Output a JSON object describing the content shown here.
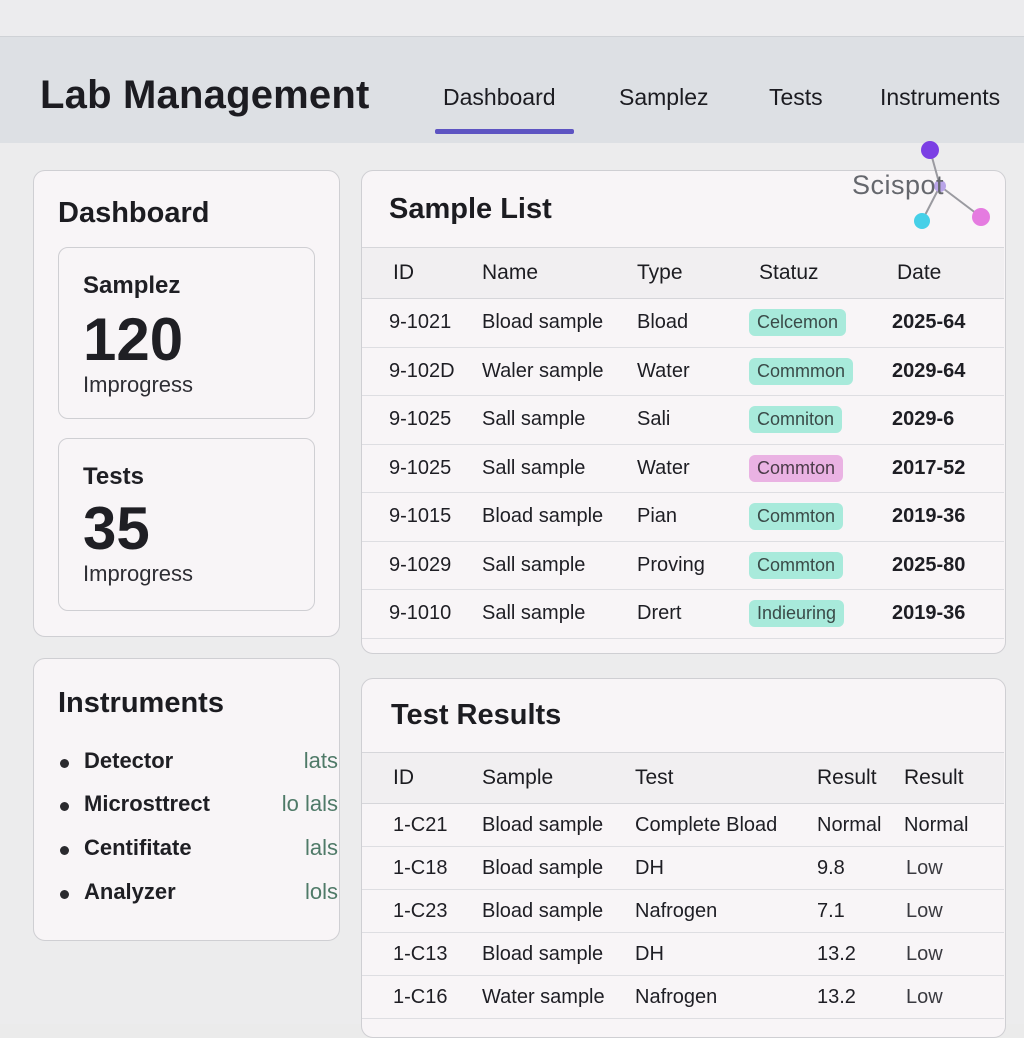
{
  "header": {
    "title": "Lab Management",
    "tabs": [
      {
        "label": "Dashboard",
        "active": true
      },
      {
        "label": "Samplez",
        "active": false
      },
      {
        "label": "Tests",
        "active": false
      },
      {
        "label": "Instruments",
        "active": false
      }
    ]
  },
  "logo": {
    "text": "Scispot",
    "colors": [
      "#7b3fe4",
      "#46d0e8",
      "#e57be0"
    ]
  },
  "dashboard": {
    "title": "Dashboard",
    "stats": [
      {
        "label": "Samplez",
        "value": "120",
        "sub": "Improgress"
      },
      {
        "label": "Tests",
        "value": "35",
        "sub": "Improgress"
      }
    ]
  },
  "instruments": {
    "title": "Instruments",
    "items": [
      {
        "name": "Detector",
        "value": "lats"
      },
      {
        "name": "Microsttrect",
        "value": "lo lals"
      },
      {
        "name": "Centifitate",
        "value": "lals"
      },
      {
        "name": "Analyzer",
        "value": "lols"
      }
    ]
  },
  "sample_list": {
    "title": "Sample List",
    "columns": [
      "ID",
      "Name",
      "Type",
      "Statuz",
      "Date"
    ],
    "rows": [
      {
        "id": "9-1021",
        "name": "Bload sample",
        "type": "Bload",
        "status": "Celcemon",
        "status_color": "teal",
        "date": "2025-64"
      },
      {
        "id": "9-102D",
        "name": "Waler sample",
        "type": "Water",
        "status": "Commmon",
        "status_color": "teal",
        "date": "2029-64"
      },
      {
        "id": "9-1025",
        "name": "Sall sample",
        "type": "Sali",
        "status": "Comniton",
        "status_color": "teal",
        "date": "2029-6"
      },
      {
        "id": "9-1025",
        "name": "Sall sample",
        "type": "Water",
        "status": "Commton",
        "status_color": "pink",
        "date": "2017-52"
      },
      {
        "id": "9-1015",
        "name": "Bload sample",
        "type": "Pian",
        "status": "Commton",
        "status_color": "teal",
        "date": "2019-36"
      },
      {
        "id": "9-1029",
        "name": "Sall sample",
        "type": "Proving",
        "status": "Commton",
        "status_color": "teal",
        "date": "2025-80"
      },
      {
        "id": "9-1010",
        "name": "Sall sample",
        "type": "Drert",
        "status": "Indieuring",
        "status_color": "teal",
        "date": "2019-36"
      }
    ]
  },
  "test_results": {
    "title": "Test Results",
    "columns": [
      "ID",
      "Sample",
      "Test",
      "Result",
      "Result"
    ],
    "rows": [
      {
        "id": "1-C21",
        "sample": "Bload sample",
        "test": "Complete Bload",
        "result": "Normal",
        "result2": "Normal"
      },
      {
        "id": "1-C18",
        "sample": "Bload sample",
        "test": "DH",
        "result": "9.8",
        "result2": "Low"
      },
      {
        "id": "1-C23",
        "sample": "Bload sample",
        "test": "Nafrogen",
        "result": "7.1",
        "result2": "Low"
      },
      {
        "id": "1-C13",
        "sample": "Bload sample",
        "test": "DH",
        "result": "13.2",
        "result2": "Low"
      },
      {
        "id": "1-C16",
        "sample": "Water sample",
        "test": "Nafrogen",
        "result": "13.2",
        "result2": "Low"
      }
    ]
  }
}
